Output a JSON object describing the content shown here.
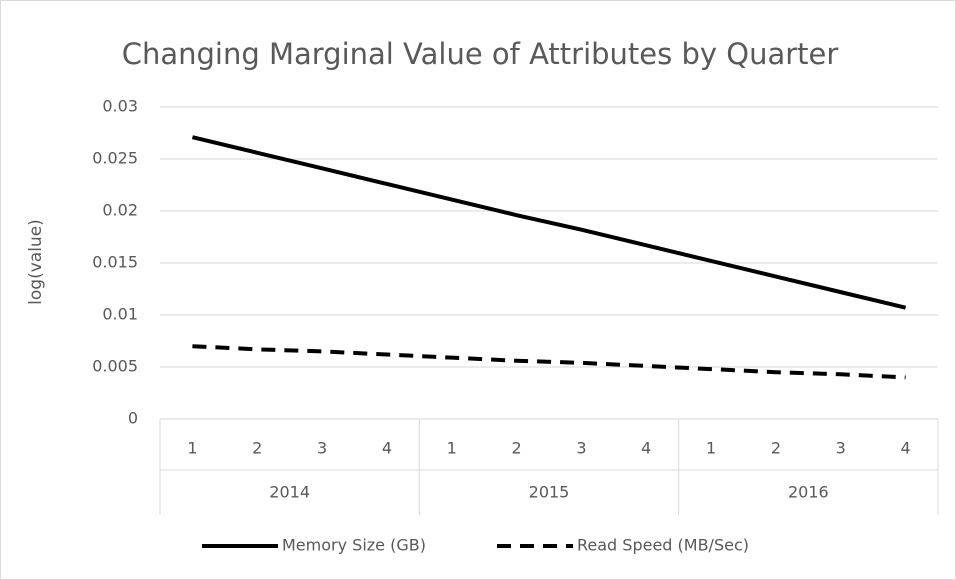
{
  "chart_data": {
    "type": "line",
    "title": "Changing Marginal Value of Attributes by Quarter",
    "y_label": "log(value)",
    "categories": [
      "1",
      "2",
      "3",
      "4",
      "1",
      "2",
      "3",
      "4",
      "1",
      "2",
      "3",
      "4"
    ],
    "category_groups": [
      "2014",
      "2015",
      "2016"
    ],
    "series": [
      {
        "name": "Memory Size (GB)",
        "color": "#000000",
        "line_style": "solid",
        "values": [
          0.0271,
          0.0256,
          0.0241,
          0.0226,
          0.0211,
          0.0196,
          0.0182,
          0.0167,
          0.0152,
          0.0137,
          0.0122,
          0.0107
        ]
      },
      {
        "name": "Read Speed (MB/Sec)",
        "color": "#000000",
        "line_style": "dashed",
        "values": [
          0.007,
          0.0067,
          0.0065,
          0.0062,
          0.0059,
          0.0056,
          0.0054,
          0.0051,
          0.0048,
          0.0045,
          0.0043,
          0.004
        ]
      }
    ],
    "ylim": [
      0,
      0.03
    ],
    "yticks": [
      0,
      0.005,
      0.01,
      0.015,
      0.02,
      0.025,
      0.03
    ],
    "grid": true,
    "legend": "bottom"
  }
}
